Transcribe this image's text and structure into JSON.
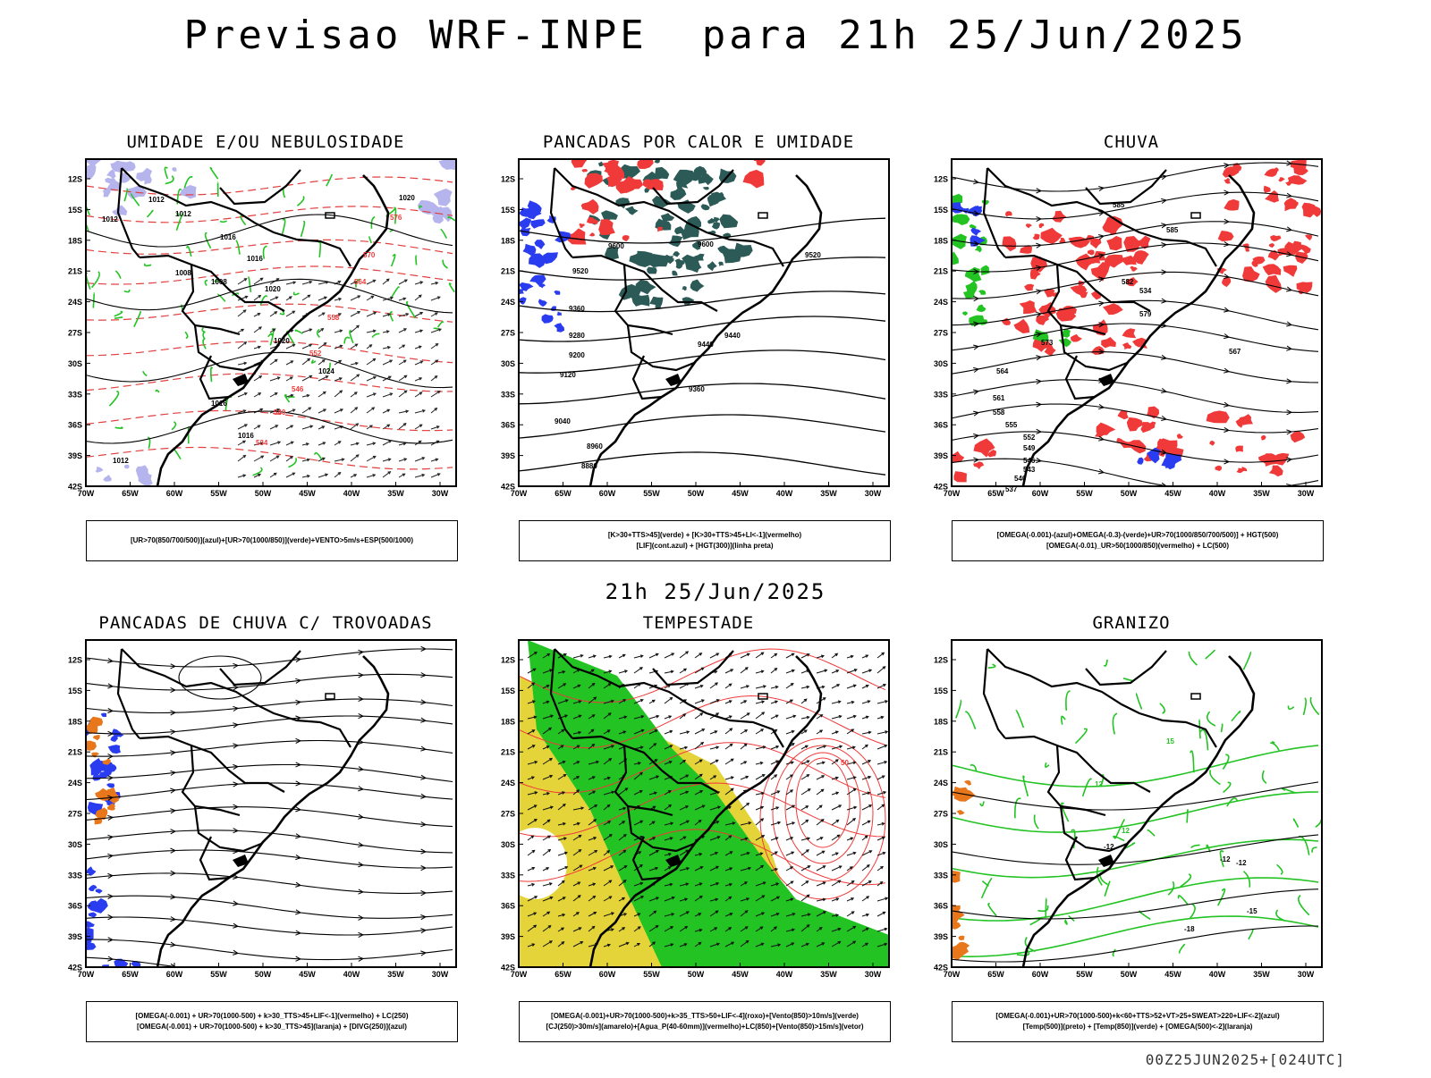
{
  "title": "Previsao WRF-INPE  para 21h 25/Jun/2025",
  "mid_title": "21h 25/Jun/2025",
  "footer": "00Z25JUN2025+[024UTC]",
  "axes": {
    "lat_ticks": [
      "12S",
      "15S",
      "18S",
      "21S",
      "24S",
      "27S",
      "30S",
      "33S",
      "36S",
      "39S",
      "42S"
    ],
    "lon_ticks": [
      "70W",
      "65W",
      "60W",
      "55W",
      "50W",
      "45W",
      "40W",
      "35W",
      "30W"
    ]
  },
  "colors": {
    "red": "#f03a3a",
    "green": "#22c322",
    "blue": "#2a3cf0",
    "lavender": "#b6b4ec",
    "teal": "#2c5a57",
    "yellow": "#e4d43a",
    "orange": "#e8771c"
  },
  "panels": [
    {
      "title": "UMIDADE E/OU NEBULOSIDADE",
      "legend": [
        "[UR>70(850/700/500)](azul)+[UR>70(1000/850)](verde)+VENTO>5m/s+ESP(500/1000)"
      ],
      "labels": [
        "1012",
        "1012",
        "1012",
        "1016",
        "1016",
        "1020",
        "1020",
        "1016",
        "1016",
        "1012",
        "1008",
        "1008",
        "1024",
        "1020",
        "576",
        "570",
        "564",
        "558",
        "552",
        "546",
        "540",
        "534"
      ]
    },
    {
      "title": "PANCADAS POR CALOR E UMIDADE",
      "legend": [
        "[K>30+TTS>45](verde) + [K>30+TTS>45+LI<-1](vermelho)",
        "[LIF](cont.azul) + [HGT(300)](linha preta)"
      ],
      "labels": [
        "9600",
        "9600",
        "9520",
        "9520",
        "9440",
        "9440",
        "9360",
        "9360",
        "9280",
        "9200",
        "9120",
        "9040",
        "8960",
        "8880"
      ]
    },
    {
      "title": "CHUVA",
      "legend": [
        "[OMEGA(-0.001)-(azul)+OMEGA(-0.3)-(verde)+UR>70(1000/850/700/500)] + HGT(500)",
        "[OMEGA(-0.01)_UR>50(1000/850)(vermelho) + LC(500)"
      ],
      "labels": [
        "585",
        "585",
        "582",
        "579",
        "573",
        "567",
        "564",
        "561",
        "558",
        "555",
        "552",
        "549",
        "546",
        "543",
        "540",
        "537",
        "534"
      ]
    },
    {
      "title": "PANCADAS DE CHUVA C/ TROVOADAS",
      "legend": [
        "[OMEGA(-0.001) + UR>70(1000-500) + k>30_TTS>45+LIF<-1](vermelho) + LC(250)",
        "[OMEGA(-0.001) + UR>70(1000-500) + k>30_TTS>45](laranja) + [DIVG(250)](azul)"
      ],
      "labels": []
    },
    {
      "title": "TEMPESTADE",
      "legend": [
        "[OMEGA(-0.001)+UR>70(1000-500)+k>35_TTS>50+LIF<-4](roxo)+[Vento(850)>10m/s](verde)",
        "[CJ(250)>30m/s](amarelo)+[Agua_P(40-60mm)](vermelho)+LC(850)+[Vento(850)>15m/s](vetor)"
      ],
      "labels": [
        "50"
      ]
    },
    {
      "title": "GRANIZO",
      "legend": [
        "[OMEGA(-0.001)+UR>70(1000-500)+k<60+TTS>52+VT>25+SWEAT>220+LIF<-2](azul)",
        "[Temp(500)](preto) + [Temp(850)](verde) + [OMEGA(500)<-2](laranja)"
      ],
      "labels": [
        "-12",
        "-15",
        "-18",
        "-12",
        "12",
        "15",
        "12",
        "-12"
      ]
    }
  ]
}
